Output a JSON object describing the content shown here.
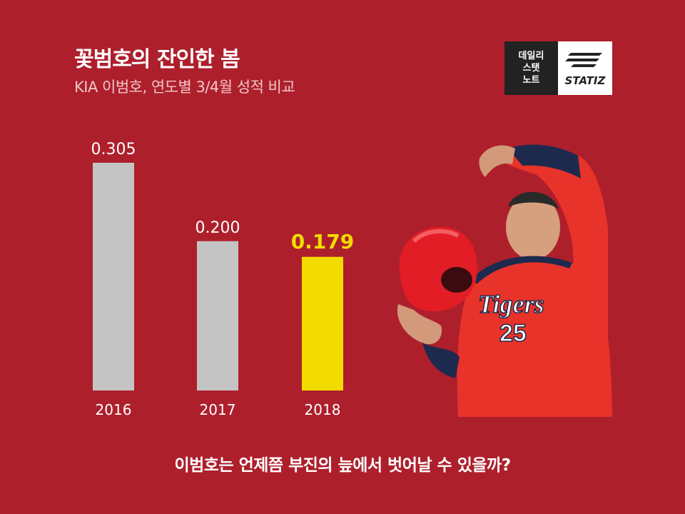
{
  "header": {
    "title": "꽃범호의 잔인한 봄",
    "subtitle": "KIA 이범호, 연도별 3/4월 성적 비교"
  },
  "logo": {
    "line1": "데일리",
    "line2": "스탯",
    "line3": "노트",
    "brand": "STATIZ"
  },
  "chart_data": {
    "type": "bar",
    "categories": [
      "2016",
      "2017",
      "2018"
    ],
    "values": [
      0.305,
      0.2,
      0.179
    ],
    "labels": [
      "0.305",
      "0.200",
      "0.179"
    ],
    "highlight_index": 2,
    "ylim": [
      0,
      0.305
    ],
    "grid": false,
    "colors": {
      "normal": "#c4c4c4",
      "highlight": "#f2dc00",
      "label": "#ffffff",
      "highlight_label": "#f2dc00"
    }
  },
  "player": {
    "jersey_text": "Tigers",
    "jersey_number": "25",
    "icon": "baseball-player-photo"
  },
  "footer": {
    "text": "이범호는 언제쯤 부진의 늪에서 벗어날 수 있을까?"
  }
}
